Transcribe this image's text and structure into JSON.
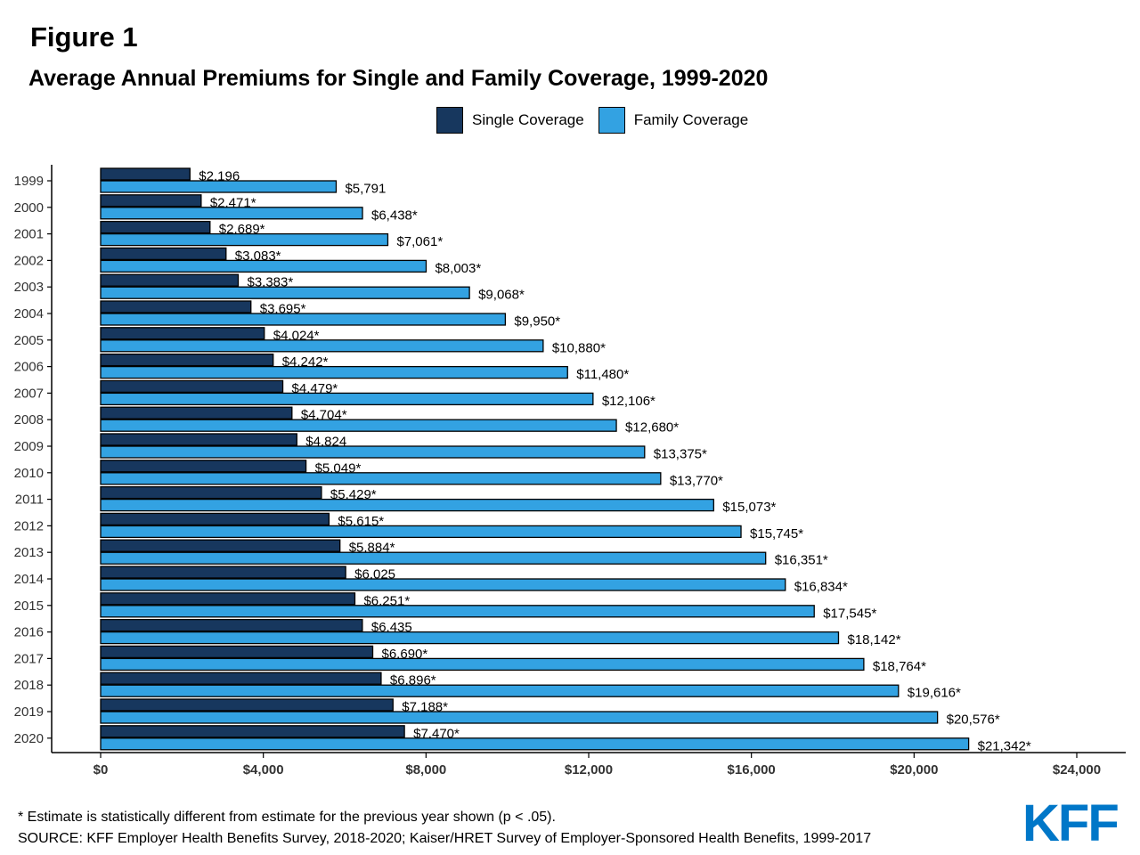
{
  "figure_label": "Figure 1",
  "title": "Average Annual Premiums for Single and Family Coverage, 1999-2020",
  "footnote": "* Estimate is statistically different from estimate for the previous year shown (p < .05).",
  "source": "SOURCE: KFF Employer Health Benefits Survey, 2018-2020; Kaiser/HRET Survey of Employer-Sponsored Health Benefits, 1999-2017",
  "logo_text": "KFF",
  "colors": {
    "single": "#17375e",
    "family": "#33a2e2",
    "logo": "#0077c8"
  },
  "chart_data": {
    "type": "bar",
    "orientation": "horizontal",
    "categories": [
      "1999",
      "2000",
      "2001",
      "2002",
      "2003",
      "2004",
      "2005",
      "2006",
      "2007",
      "2008",
      "2009",
      "2010",
      "2011",
      "2012",
      "2013",
      "2014",
      "2015",
      "2016",
      "2017",
      "2018",
      "2019",
      "2020"
    ],
    "series": [
      {
        "name": "Single Coverage",
        "color": "#17375e",
        "values": [
          2196,
          2471,
          2689,
          3083,
          3383,
          3695,
          4024,
          4242,
          4479,
          4704,
          4824,
          5049,
          5429,
          5615,
          5884,
          6025,
          6251,
          6435,
          6690,
          6896,
          7188,
          7470
        ],
        "labels": [
          "$2,196",
          "$2,471*",
          "$2,689*",
          "$3,083*",
          "$3,383*",
          "$3,695*",
          "$4,024*",
          "$4,242*",
          "$4,479*",
          "$4,704*",
          "$4,824",
          "$5,049*",
          "$5,429*",
          "$5,615*",
          "$5,884*",
          "$6,025",
          "$6,251*",
          "$6,435",
          "$6,690*",
          "$6,896*",
          "$7,188*",
          "$7,470*"
        ]
      },
      {
        "name": "Family Coverage",
        "color": "#33a2e2",
        "values": [
          5791,
          6438,
          7061,
          8003,
          9068,
          9950,
          10880,
          11480,
          12106,
          12680,
          13375,
          13770,
          15073,
          15745,
          16351,
          16834,
          17545,
          18142,
          18764,
          19616,
          20576,
          21342
        ],
        "labels": [
          "$5,791",
          "$6,438*",
          "$7,061*",
          "$8,003*",
          "$9,068*",
          "$9,950*",
          "$10,880*",
          "$11,480*",
          "$12,106*",
          "$12,680*",
          "$13,375*",
          "$13,770*",
          "$15,073*",
          "$15,745*",
          "$16,351*",
          "$16,834*",
          "$17,545*",
          "$18,142*",
          "$18,764*",
          "$19,616*",
          "$20,576*",
          "$21,342*"
        ]
      }
    ],
    "x_ticks": [
      0,
      4000,
      8000,
      12000,
      16000,
      20000,
      24000
    ],
    "x_tick_labels": [
      "$0",
      "$4,000",
      "$8,000",
      "$12,000",
      "$16,000",
      "$20,000",
      "$24,000"
    ],
    "xlim": [
      0,
      24000
    ],
    "legend_position": "top",
    "grid": false
  }
}
